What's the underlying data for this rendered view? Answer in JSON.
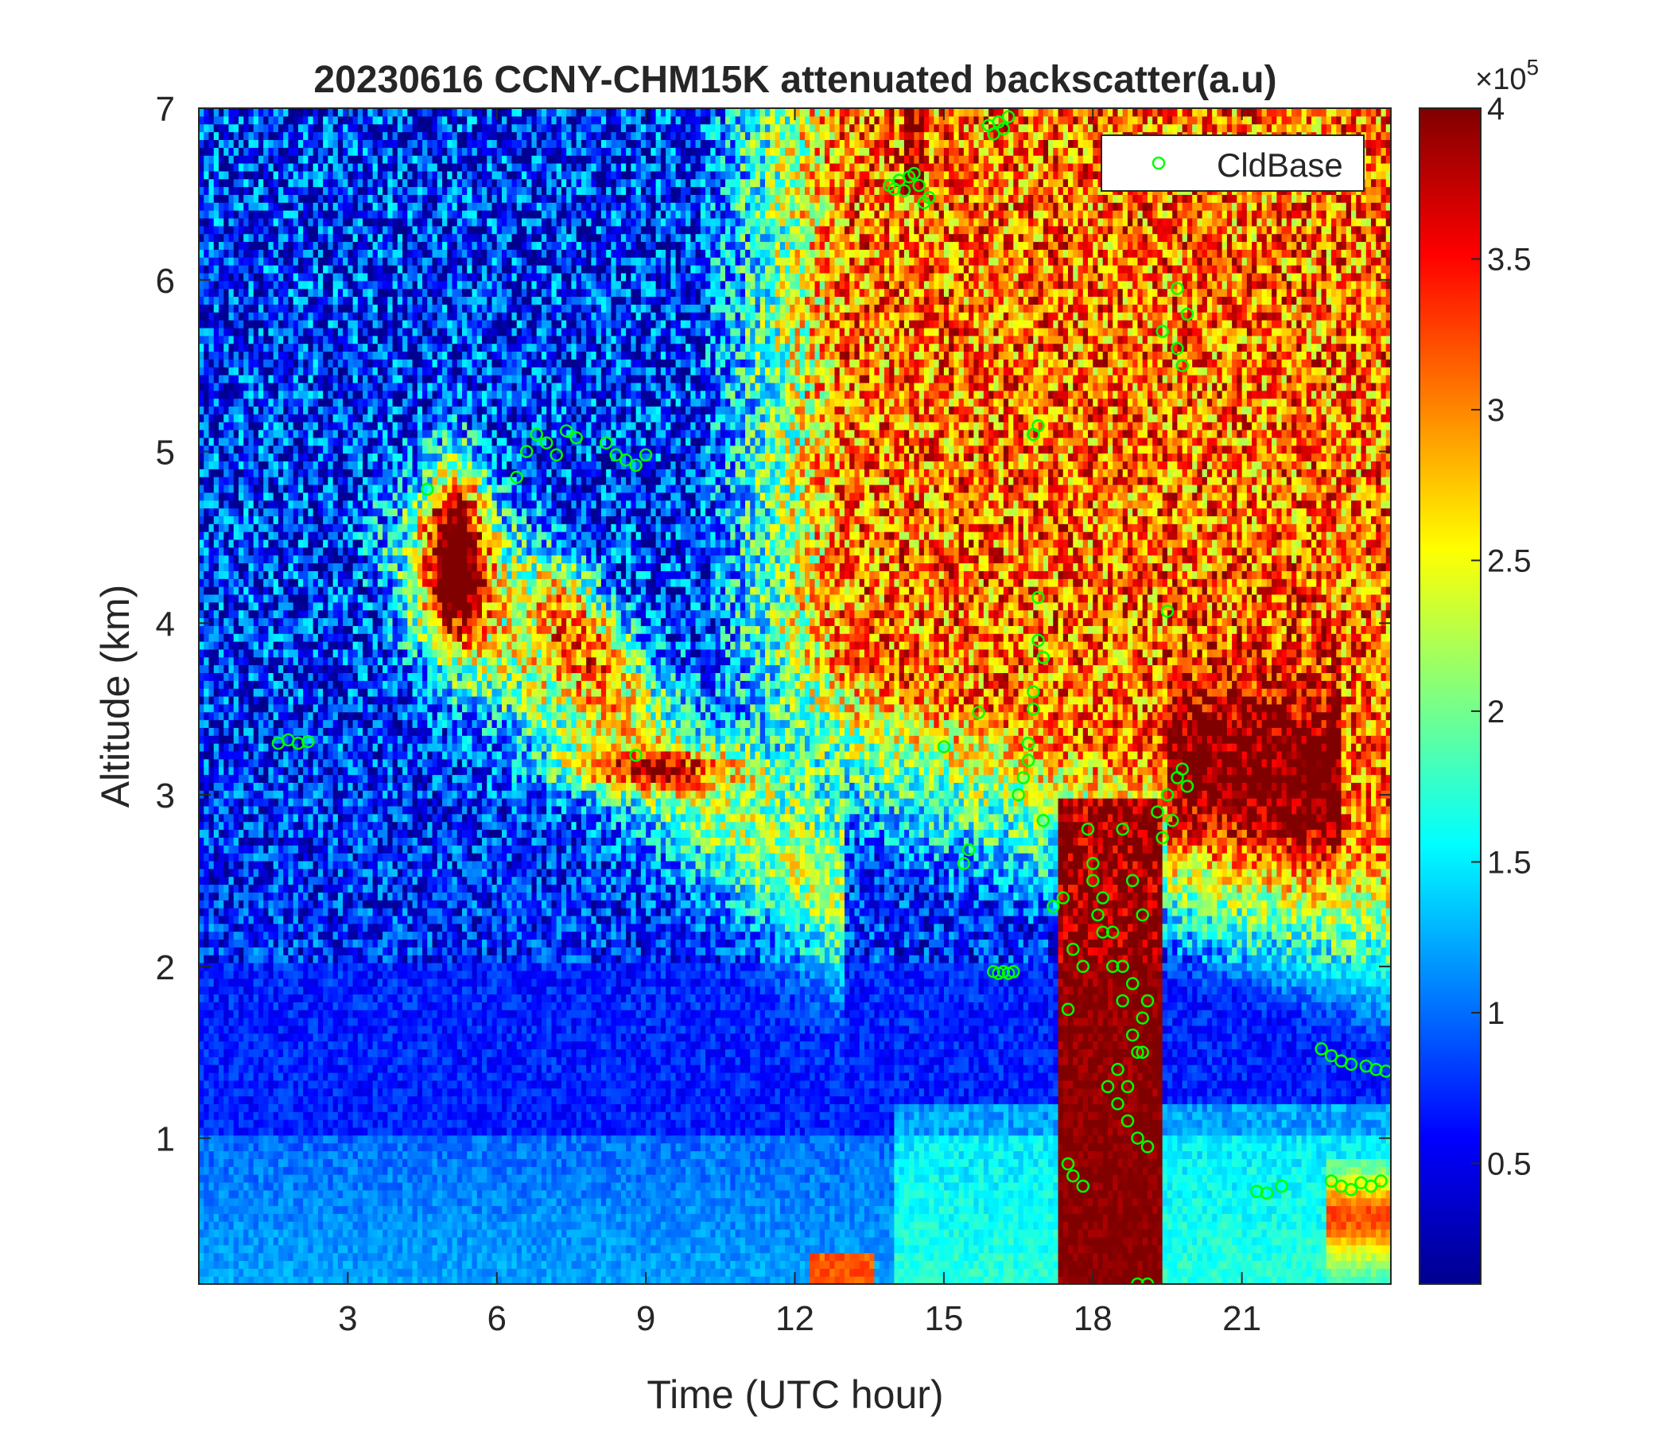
{
  "colors": {
    "cloud_base_marker": "#00ff00",
    "colormap": "jet",
    "colormap_stops": [
      "#00008f",
      "#0000ff",
      "#0080ff",
      "#00ffff",
      "#80ff80",
      "#ffff00",
      "#ff8000",
      "#ff0000",
      "#800000"
    ]
  },
  "chart_data": {
    "type": "heatmap",
    "title": "20230616 CCNY-CHM15K attenuated backscatter(a.u)",
    "xlabel": "Time (UTC hour)",
    "ylabel": "Altitude (km)",
    "xlim": [
      0,
      24
    ],
    "ylim": [
      0.15,
      7
    ],
    "xticks": [
      3,
      6,
      9,
      12,
      15,
      18,
      21
    ],
    "xtick_labels": [
      "3",
      "6",
      "9",
      "12",
      "15",
      "18",
      "21"
    ],
    "yticks": [
      1,
      2,
      3,
      4,
      5,
      6,
      7
    ],
    "ytick_labels": [
      "1",
      "2",
      "3",
      "4",
      "5",
      "6",
      "7"
    ],
    "colorbar": {
      "clim": [
        0.1,
        4
      ],
      "exponent_label": "×10",
      "exponent_power": "5",
      "ticks": [
        0.5,
        1,
        1.5,
        2,
        2.5,
        3,
        3.5,
        4
      ],
      "tick_labels": [
        "0.5",
        "1",
        "1.5",
        "2",
        "2.5",
        "3",
        "3.5",
        "4"
      ]
    },
    "legend": {
      "placement": "top-right",
      "entries": [
        "CldBase"
      ]
    },
    "grid": false,
    "features": [
      {
        "time_range": [
          17.3,
          19.4
        ],
        "altitude_range": [
          0.15,
          3.0
        ],
        "value": 4.0
      },
      {
        "time_range": [
          4.4,
          6.2
        ],
        "altitude_range": [
          3.8,
          5.1
        ],
        "value": 3.8
      },
      {
        "time_range": [
          6.5,
          10.5
        ],
        "altitude_range": [
          3.0,
          3.4
        ],
        "value": 2.6
      },
      {
        "time_range": [
          22.5,
          24
        ],
        "altitude_range": [
          0.4,
          0.8
        ],
        "value": 3.0
      },
      {
        "time_range": [
          12.5,
          13.5
        ],
        "altitude_range": [
          0.15,
          0.3
        ],
        "value": 2.8
      }
    ],
    "cloud_base_series": {
      "name": "CldBase",
      "x": [
        1.6,
        1.8,
        2.0,
        2.2,
        4.6,
        6.4,
        6.6,
        6.8,
        7.0,
        7.2,
        7.4,
        7.6,
        8.2,
        8.4,
        8.6,
        8.8,
        9.0,
        8.8,
        13.9,
        14.0,
        14.1,
        14.2,
        14.3,
        14.4,
        14.5,
        14.6,
        14.7,
        15.0,
        15.4,
        15.5,
        15.7,
        15.9,
        16.0,
        16.1,
        16.2,
        16.3,
        16.0,
        16.1,
        16.2,
        16.3,
        16.4,
        16.5,
        16.6,
        16.7,
        16.8,
        16.9,
        16.7,
        16.8,
        16.9,
        17.0,
        16.8,
        16.9,
        17.0,
        17.2,
        17.4,
        17.6,
        17.8,
        17.5,
        17.9,
        18.0,
        18.1,
        18.2,
        18.4,
        18.6,
        18.8,
        19.0,
        18.3,
        18.5,
        18.7,
        18.9,
        19.1,
        18.0,
        18.2,
        18.4,
        18.6,
        18.8,
        19.0,
        18.5,
        18.7,
        18.9,
        19.1,
        17.5,
        17.6,
        17.8,
        18.6,
        18.8,
        19.0,
        19.3,
        19.5,
        19.7,
        19.9,
        19.4,
        19.6,
        19.8,
        19.5,
        19.7,
        19.9,
        19.4,
        19.7,
        19.8,
        22.6,
        22.8,
        23.0,
        23.2,
        23.5,
        23.7,
        23.9,
        22.8,
        23.0,
        23.2,
        23.4,
        23.6,
        23.8,
        21.8,
        21.5,
        21.3,
        18.9,
        19.1
      ],
      "y": [
        3.3,
        3.32,
        3.3,
        3.31,
        4.78,
        4.85,
        5.0,
        5.1,
        5.05,
        4.98,
        5.12,
        5.08,
        5.05,
        4.98,
        4.95,
        4.92,
        4.98,
        3.23,
        6.55,
        6.53,
        6.58,
        6.52,
        6.6,
        6.62,
        6.55,
        6.45,
        6.48,
        3.28,
        2.6,
        2.68,
        3.48,
        6.9,
        6.85,
        6.92,
        6.88,
        6.95,
        1.97,
        1.96,
        1.97,
        1.96,
        1.97,
        3.0,
        3.1,
        3.2,
        3.5,
        3.9,
        3.3,
        3.6,
        4.15,
        2.85,
        5.1,
        5.15,
        3.8,
        2.35,
        2.4,
        2.1,
        2.0,
        1.75,
        2.8,
        2.5,
        2.3,
        2.2,
        2.0,
        1.8,
        1.6,
        1.5,
        1.3,
        1.2,
        1.1,
        1.0,
        0.95,
        2.6,
        2.4,
        2.2,
        2.0,
        1.9,
        1.7,
        1.4,
        1.3,
        1.5,
        1.8,
        0.85,
        0.78,
        0.72,
        2.8,
        2.5,
        2.3,
        2.9,
        3.0,
        3.1,
        3.05,
        2.75,
        2.85,
        3.15,
        4.07,
        5.95,
        5.8,
        5.7,
        5.6,
        5.5,
        1.52,
        1.48,
        1.45,
        1.43,
        1.42,
        1.4,
        1.39,
        0.75,
        0.72,
        0.7,
        0.74,
        0.72,
        0.75,
        0.72,
        0.68,
        0.69,
        0.15,
        0.15
      ]
    }
  }
}
